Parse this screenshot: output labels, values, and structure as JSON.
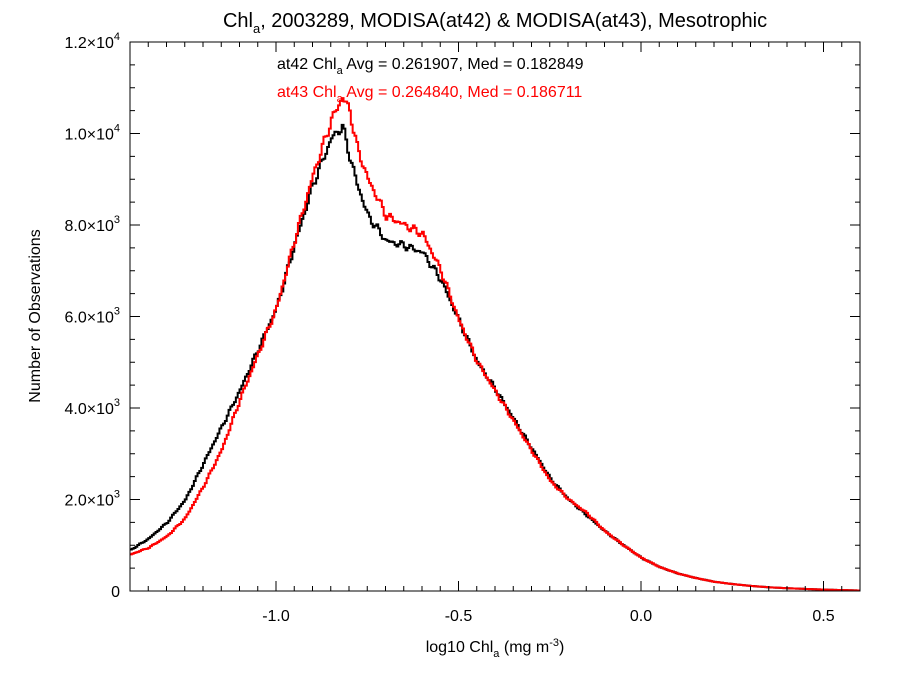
{
  "chart_data": {
    "type": "line",
    "title": {
      "pre": "Chl",
      "sub": "a",
      "post": ", 2003289, MODISA(at42) & MODISA(at43), Mesotrophic"
    },
    "xlabel": {
      "pre": "log10 Chl",
      "sub": "a",
      "mid": " (mg m",
      "sup": "-3",
      "post": ")"
    },
    "ylabel": "Number of Observations",
    "xlim": [
      -1.4,
      0.6
    ],
    "ylim": [
      0,
      12000
    ],
    "x_ticks": [
      {
        "value": -1.0,
        "label": "-1.0"
      },
      {
        "value": -0.5,
        "label": "-0.5"
      },
      {
        "value": 0.0,
        "label": "0.0"
      },
      {
        "value": 0.5,
        "label": "0.5"
      }
    ],
    "y_ticks": [
      {
        "value": 0,
        "mant": "0",
        "exp": ""
      },
      {
        "value": 2000,
        "mant": "2.0×10",
        "exp": "3"
      },
      {
        "value": 4000,
        "mant": "4.0×10",
        "exp": "3"
      },
      {
        "value": 6000,
        "mant": "6.0×10",
        "exp": "3"
      },
      {
        "value": 8000,
        "mant": "8.0×10",
        "exp": "3"
      },
      {
        "value": 10000,
        "mant": "1.0×10",
        "exp": "4"
      },
      {
        "value": 12000,
        "mant": "1.2×10",
        "exp": "4"
      }
    ],
    "grid": false,
    "series": [
      {
        "color": "#000000",
        "stats": {
          "pre": "at42 Chl",
          "sub": "a",
          "post": " Avg = 0.261907, Med = 0.182849"
        },
        "x": [
          -1.4,
          -1.35,
          -1.3,
          -1.25,
          -1.2,
          -1.15,
          -1.1,
          -1.05,
          -1.0,
          -0.95,
          -0.9,
          -0.85,
          -0.82,
          -0.8,
          -0.78,
          -0.75,
          -0.7,
          -0.65,
          -0.6,
          -0.55,
          -0.5,
          -0.45,
          -0.4,
          -0.35,
          -0.3,
          -0.25,
          -0.2,
          -0.15,
          -0.1,
          -0.05,
          0.0,
          0.05,
          0.1,
          0.15,
          0.2,
          0.25,
          0.3,
          0.35,
          0.4,
          0.45,
          0.5,
          0.55,
          0.6
        ],
        "y": [
          900,
          1150,
          1500,
          2000,
          2800,
          3600,
          4400,
          5300,
          6200,
          7600,
          8900,
          9900,
          10150,
          9500,
          8900,
          8200,
          7650,
          7550,
          7400,
          6800,
          5900,
          5000,
          4400,
          3750,
          3100,
          2450,
          2000,
          1650,
          1300,
          1000,
          720,
          520,
          380,
          280,
          200,
          150,
          110,
          80,
          60,
          45,
          30,
          20,
          10
        ]
      },
      {
        "color": "#ff0000",
        "stats": {
          "pre": "at43 Chl",
          "sub": "a",
          "post": " Avg = 0.264840, Med = 0.186711"
        },
        "x": [
          -1.4,
          -1.35,
          -1.3,
          -1.25,
          -1.2,
          -1.15,
          -1.1,
          -1.05,
          -1.0,
          -0.95,
          -0.9,
          -0.85,
          -0.82,
          -0.8,
          -0.78,
          -0.75,
          -0.7,
          -0.65,
          -0.6,
          -0.55,
          -0.5,
          -0.45,
          -0.4,
          -0.35,
          -0.3,
          -0.25,
          -0.2,
          -0.15,
          -0.1,
          -0.05,
          0.0,
          0.05,
          0.1,
          0.15,
          0.2,
          0.25,
          0.3,
          0.35,
          0.4,
          0.45,
          0.5,
          0.55,
          0.6
        ],
        "y": [
          800,
          950,
          1200,
          1600,
          2300,
          3100,
          4200,
          5200,
          6200,
          7700,
          9100,
          10300,
          10800,
          10500,
          9700,
          9000,
          8200,
          8000,
          7800,
          7000,
          5900,
          5000,
          4350,
          3700,
          3050,
          2400,
          2000,
          1700,
          1300,
          1000,
          720,
          520,
          380,
          280,
          200,
          150,
          110,
          80,
          60,
          45,
          30,
          20,
          10
        ]
      }
    ]
  }
}
